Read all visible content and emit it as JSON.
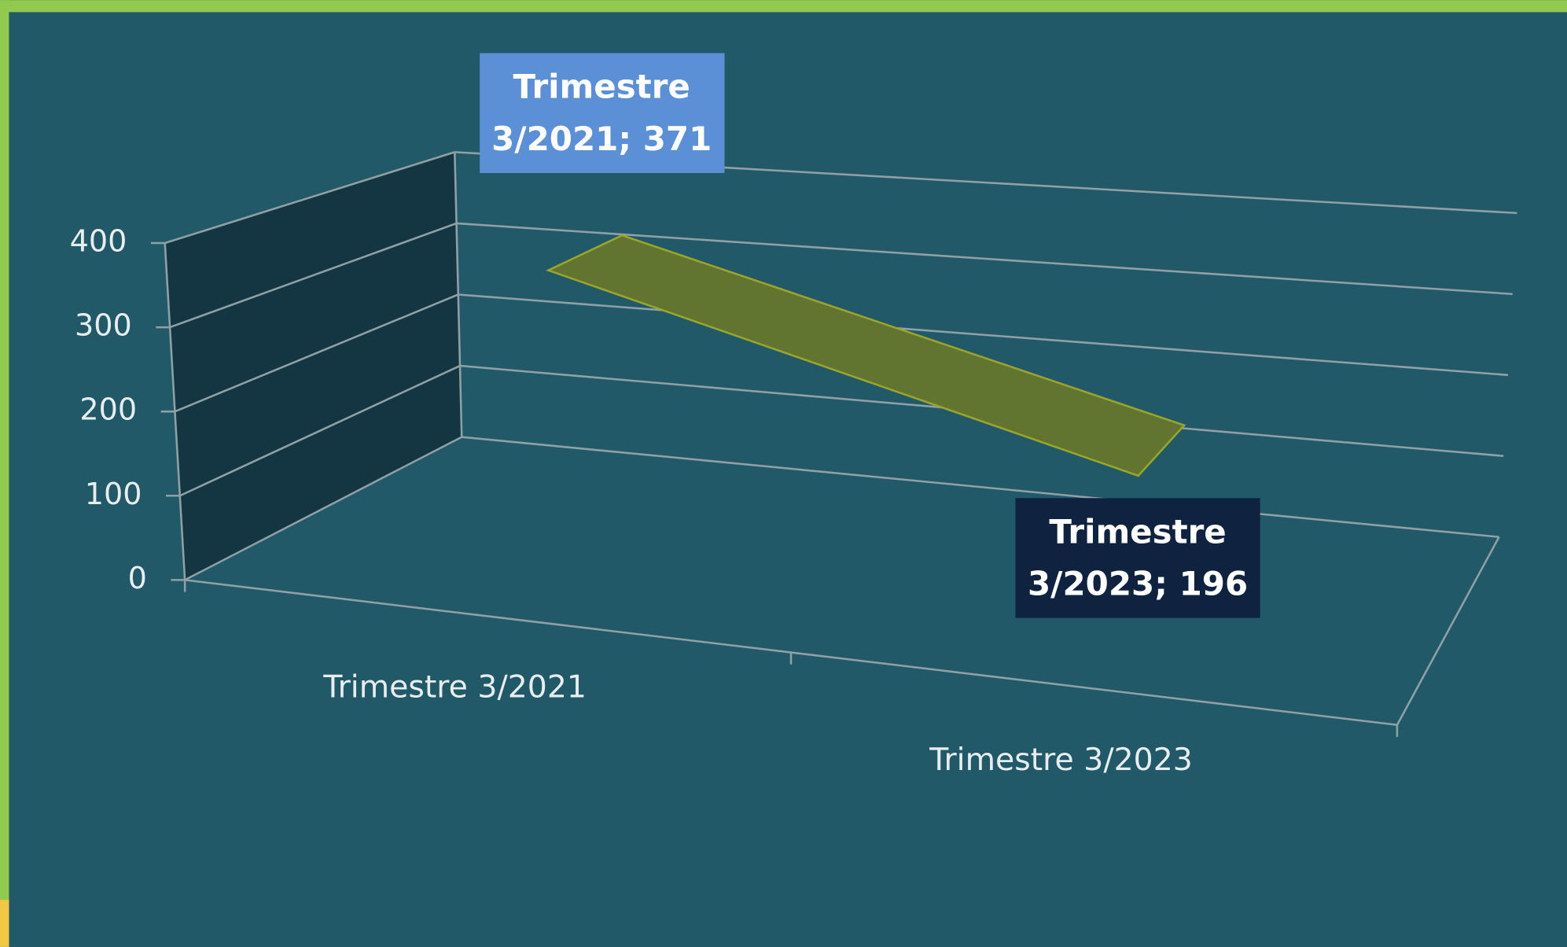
{
  "chart_data": {
    "type": "line",
    "categories": [
      "Trimestre 3/2021",
      "Trimestre 3/2023"
    ],
    "values": [
      371,
      196
    ],
    "value_labels": [
      "Trimestre 3/2021; 371",
      "Trimestre 3/2023; 196"
    ],
    "color": "#627530",
    "ylim": [
      0,
      400
    ],
    "yticks": [
      0,
      100,
      200,
      300,
      400
    ],
    "grid": true
  }
}
